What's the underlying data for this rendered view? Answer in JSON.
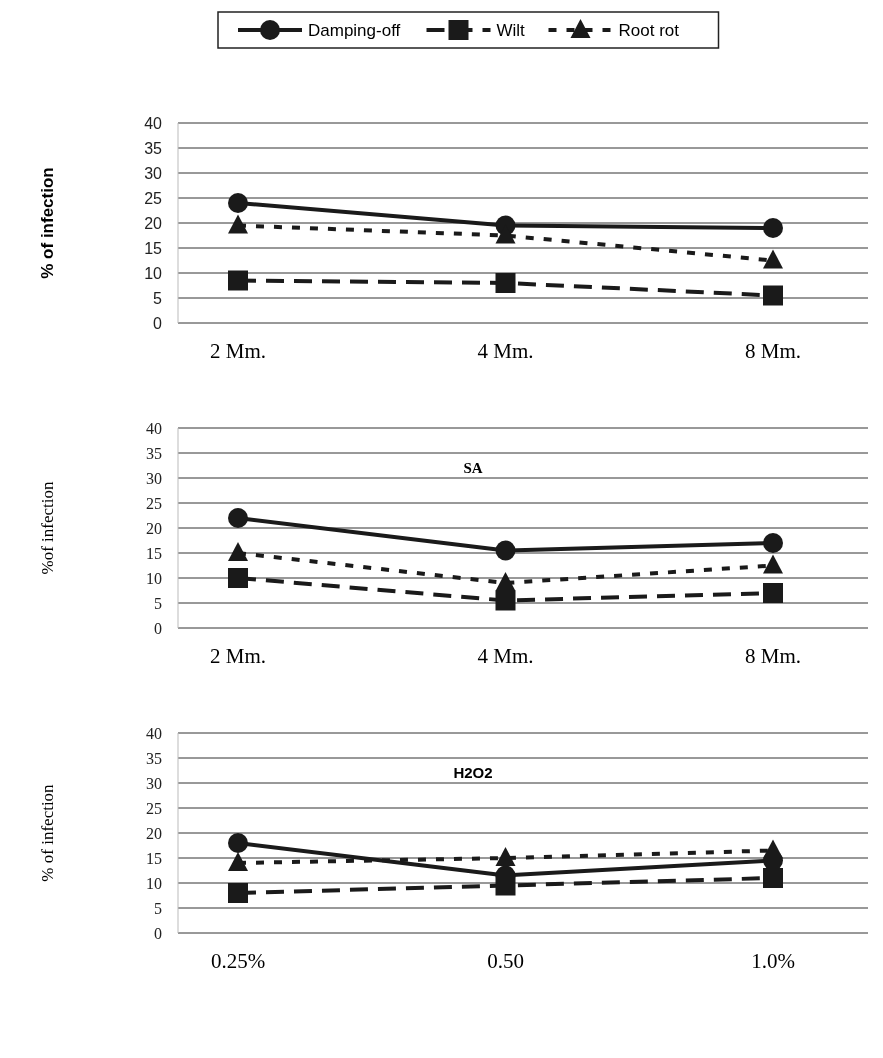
{
  "chart_data": [
    {
      "type": "line",
      "ylabel": "% of infection",
      "categories": [
        "2 Mm.",
        "4 Mm.",
        "8 Mm."
      ],
      "ylim": [
        0,
        40
      ],
      "yticks": [
        0,
        5,
        10,
        15,
        20,
        25,
        30,
        35,
        40
      ],
      "grid": "y",
      "legend": "top",
      "series": [
        {
          "name": "Damping-off",
          "color": "#1a1a1a",
          "marker": "circle",
          "line_style": "solid",
          "values": [
            24,
            19.5,
            19
          ]
        },
        {
          "name": "Wilt",
          "color": "#1a1a1a",
          "marker": "square",
          "line_style": "dashed",
          "values": [
            8.5,
            8,
            5.5
          ]
        },
        {
          "name": "Root rot",
          "color": "#1a1a1a",
          "marker": "triangle",
          "line_style": "dotted",
          "values": [
            19.5,
            17.5,
            12.5
          ]
        }
      ]
    },
    {
      "type": "line",
      "title": "SA",
      "ylabel": "%of infection",
      "categories": [
        "2 Mm.",
        "4 Mm.",
        "8 Mm."
      ],
      "ylim": [
        0,
        40
      ],
      "yticks": [
        0,
        5,
        10,
        15,
        20,
        25,
        30,
        35,
        40
      ],
      "grid": "y",
      "series": [
        {
          "color": "#1a1a1a",
          "marker": "circle",
          "line_style": "solid",
          "values": [
            22,
            15.5,
            17
          ]
        },
        {
          "color": "#1a1a1a",
          "marker": "square",
          "line_style": "dashed",
          "values": [
            10,
            5.5,
            7
          ]
        },
        {
          "color": "#1a1a1a",
          "marker": "triangle",
          "line_style": "dotted",
          "values": [
            15,
            9,
            12.5
          ]
        }
      ]
    },
    {
      "type": "line",
      "title": "H2O2",
      "ylabel": "% of infection",
      "categories": [
        "0.25%",
        "0.50",
        "1.0%"
      ],
      "ylim": [
        0,
        40
      ],
      "yticks": [
        0,
        5,
        10,
        15,
        20,
        25,
        30,
        35,
        40
      ],
      "grid": "y",
      "series": [
        {
          "color": "#1a1a1a",
          "marker": "circle",
          "line_style": "solid",
          "values": [
            18,
            11.5,
            14.5
          ]
        },
        {
          "color": "#1a1a1a",
          "marker": "square",
          "line_style": "dashed",
          "values": [
            8,
            9.5,
            11
          ]
        },
        {
          "color": "#1a1a1a",
          "marker": "triangle",
          "line_style": "dotted",
          "values": [
            14,
            15,
            16.5
          ]
        }
      ]
    }
  ]
}
